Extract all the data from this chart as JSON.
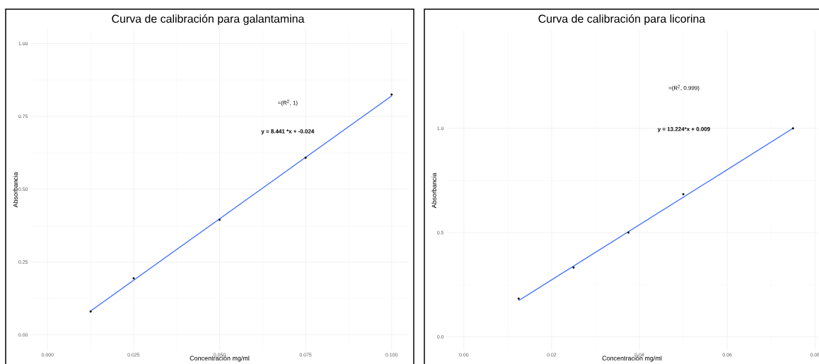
{
  "chart_data": [
    {
      "type": "scatter",
      "title": "Curva de calibración para galantamina",
      "xlabel": "Concentración mg/ml",
      "ylabel": "Absorbancia",
      "xlim": [
        -0.005,
        0.105
      ],
      "ylim": [
        -0.054,
        1.05
      ],
      "xticks": [
        {
          "value": 0,
          "label": "0.000"
        },
        0.025,
        {
          "value": 0.05,
          "label": "0.050"
        },
        0.075,
        {
          "value": 0.1,
          "label": "0.100"
        }
      ],
      "yticks": [
        {
          "value": 0,
          "label": "0.00"
        },
        0.25,
        {
          "value": 0.5,
          "label": "0.50"
        },
        0.75,
        {
          "value": 1,
          "label": "1.00"
        }
      ],
      "grid": true,
      "series": [
        {
          "color": "#000000",
          "marker": "circle",
          "x": [
            0.0125,
            0.025,
            0.05,
            0.075,
            0.1
          ],
          "values": [
            0.08,
            0.194,
            0.395,
            0.608,
            0.825
          ]
        },
        {
          "type": "line",
          "color": "#3366ff",
          "marker": "none",
          "x": [
            0.0125,
            0.1
          ],
          "values": [
            0.082,
            0.82
          ]
        }
      ],
      "annotations": [
        "=(R$^{2}$, 1)",
        "y = 8.441 *x + -0.024"
      ]
    },
    {
      "type": "scatter",
      "title": "Curva de calibración para licorina",
      "xlabel": "Concentración mg/ml",
      "ylabel": "Absorbancia",
      "xlim": [
        -0.004,
        0.0806
      ],
      "ylim": [
        -0.066,
        1.47
      ],
      "xticks": [
        {
          "value": 0,
          "label": "0.00"
        },
        0.02,
        0.04,
        0.06,
        0.08
      ],
      "yticks": [
        {
          "value": 0,
          "label": "0.0"
        },
        0.5,
        {
          "value": 1,
          "label": "1.0"
        }
      ],
      "grid": true,
      "series": [
        {
          "color": "#000000",
          "marker": "circle",
          "x": [
            0.0125,
            0.025,
            0.0375,
            0.05,
            0.075
          ],
          "values": [
            0.183,
            0.332,
            0.5,
            0.684,
            1.0
          ]
        },
        {
          "type": "line",
          "color": "#3366ff",
          "marker": "none",
          "x": [
            0.0125,
            0.075
          ],
          "values": [
            0.174,
            1.0
          ]
        }
      ],
      "annotations": [
        "=(R$^{2}$, 0.999)",
        "y = 13.224*x + 0.009"
      ]
    }
  ]
}
